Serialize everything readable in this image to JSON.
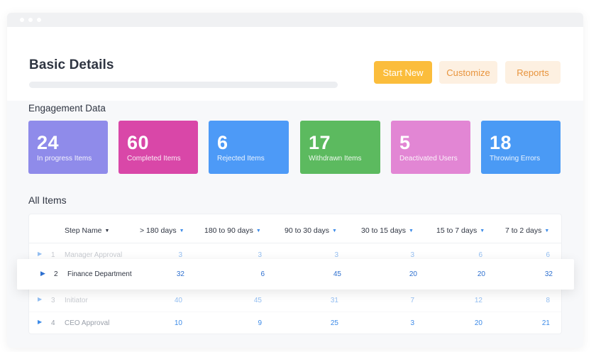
{
  "header": {
    "title": "Basic Details",
    "buttons": {
      "start_new": "Start New",
      "customize": "Customize",
      "reports": "Reports"
    }
  },
  "engagement": {
    "title": "Engagement Data",
    "cards": [
      {
        "value": "24",
        "label": "In progress Items",
        "color": "#8f8bea"
      },
      {
        "value": "60",
        "label": "Completed Items",
        "color": "#d947a8"
      },
      {
        "value": "6",
        "label": "Rejected Items",
        "color": "#4d9af7"
      },
      {
        "value": "17",
        "label": "Withdrawn Items",
        "color": "#5cba5f"
      },
      {
        "value": "5",
        "label": "Deactivated Users",
        "color": "#e286d4"
      },
      {
        "value": "18",
        "label": "Throwing Errors",
        "color": "#4a9af5"
      }
    ]
  },
  "items": {
    "title": "All Items",
    "columns": [
      "Step Name",
      "> 180 days",
      "180 to 90 days",
      "90 to 30 days",
      "30 to 15 days",
      "15 to 7 days",
      "7 to 2 days"
    ],
    "rows": [
      {
        "index": "1",
        "name": "Manager Approval",
        "values": [
          "3",
          "3",
          "3",
          "3",
          "6",
          "6"
        ]
      },
      {
        "index": "2",
        "name": "Finance Department",
        "values": [
          "32",
          "6",
          "45",
          "20",
          "20",
          "32"
        ]
      },
      {
        "index": "3",
        "name": "Initiator",
        "values": [
          "40",
          "45",
          "31",
          "7",
          "12",
          "8"
        ]
      },
      {
        "index": "4",
        "name": "CEO Approval",
        "values": [
          "10",
          "9",
          "25",
          "3",
          "20",
          "21"
        ]
      }
    ]
  }
}
